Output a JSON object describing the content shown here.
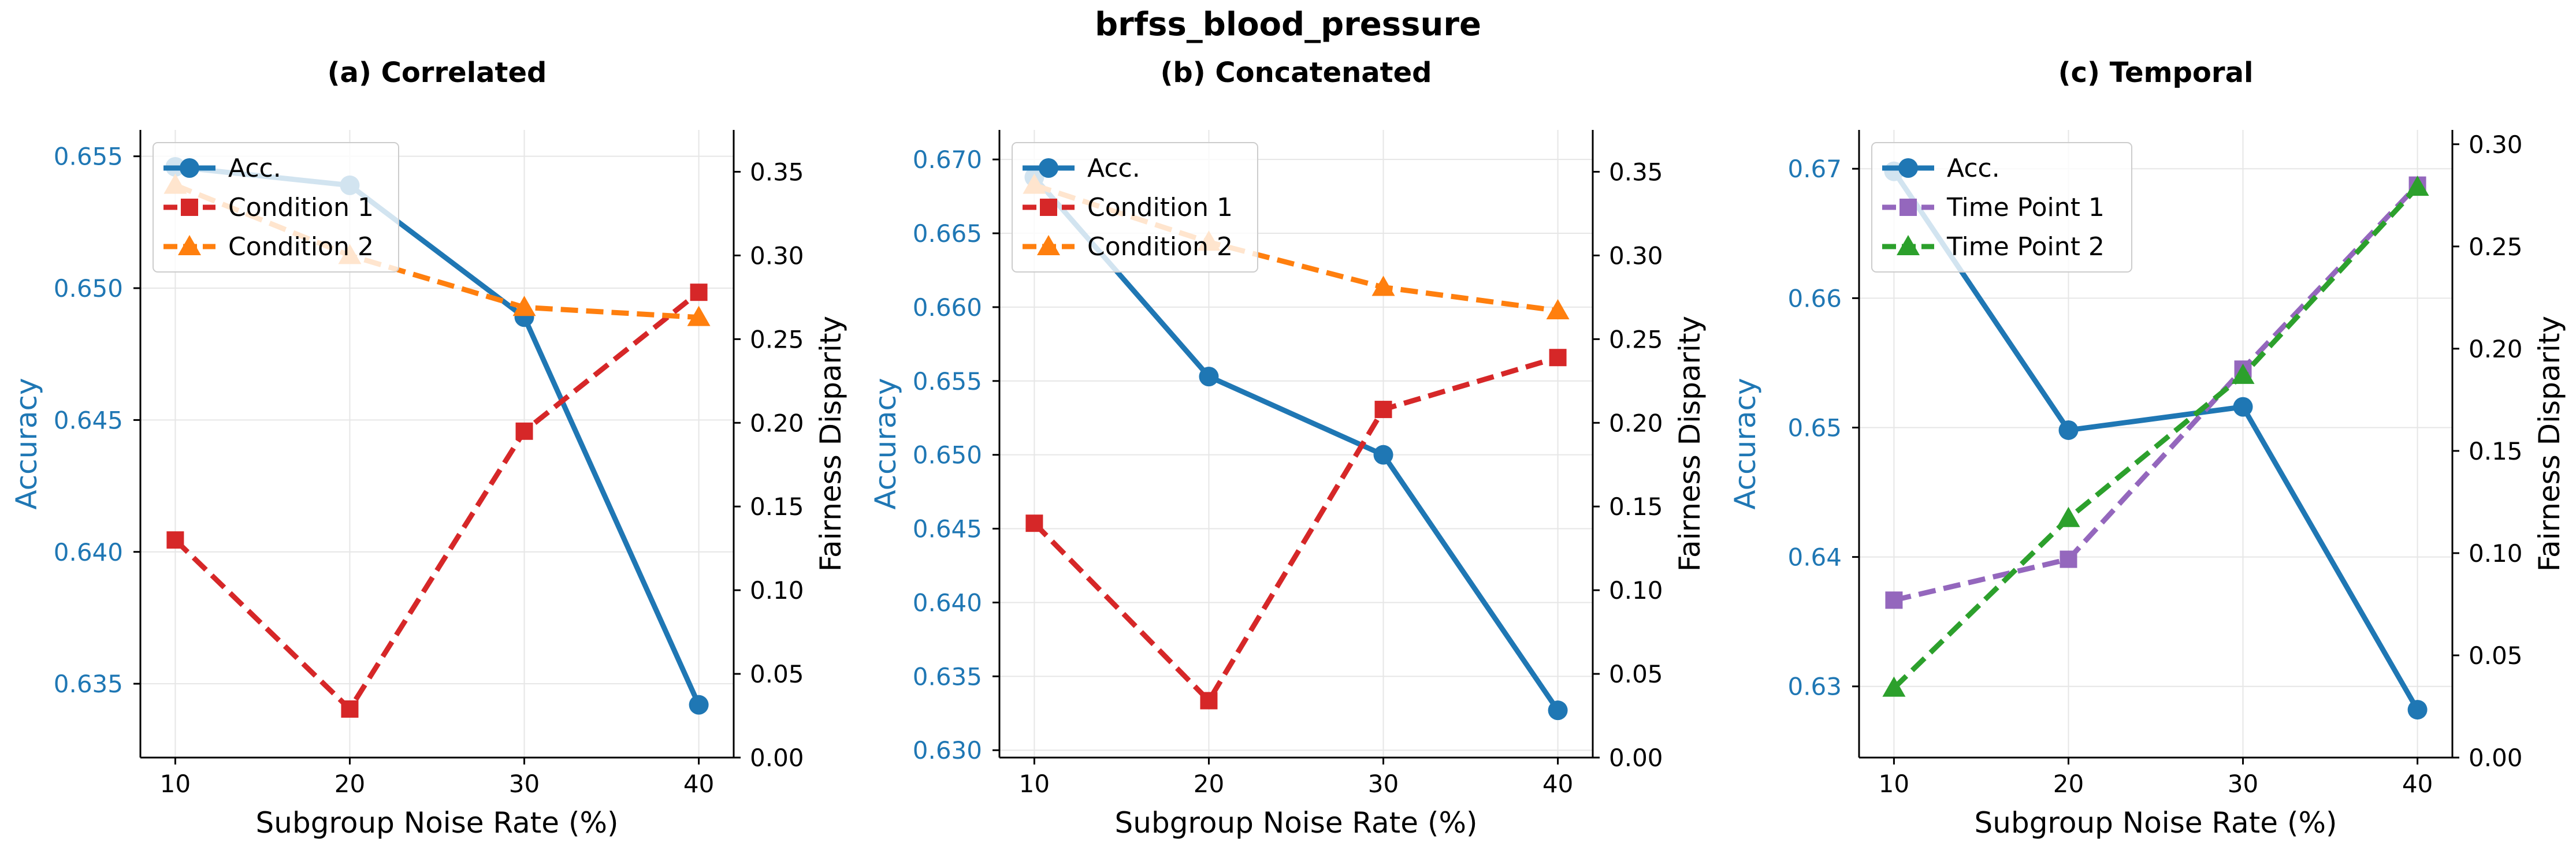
{
  "figure_title": "brfss_blood_pressure",
  "colors": {
    "accuracy": "#1f77b4",
    "condition1": "#d62728",
    "condition2": "#ff7f0e",
    "timepoint1": "#9467bd",
    "timepoint2": "#2ca02c",
    "grid": "#e6e6e6",
    "axis": "#000000"
  },
  "chart_data": [
    {
      "type": "line",
      "title": "(a) Correlated",
      "xlabel": "Subgroup Noise Rate (%)",
      "ylabel": "Accuracy",
      "y2label": "Fairness Disparity",
      "x": [
        10,
        20,
        30,
        40
      ],
      "xlim": [
        8,
        42
      ],
      "ylim": [
        0.6322,
        0.656
      ],
      "y2lim": [
        0.0,
        0.375
      ],
      "yticks": [
        "0.635",
        "0.640",
        "0.645",
        "0.650",
        "0.655"
      ],
      "y2ticks": [
        "0.00",
        "0.05",
        "0.10",
        "0.15",
        "0.20",
        "0.25",
        "0.30",
        "0.35"
      ],
      "grid": true,
      "legend_position": "top-left",
      "series": [
        {
          "name": "Acc.",
          "axis": "left",
          "values": [
            0.6546,
            0.6539,
            0.6489,
            0.6342
          ],
          "color": "accuracy",
          "marker": "circle",
          "dashed": false
        },
        {
          "name": "Condition 1",
          "axis": "right",
          "values": [
            0.13,
            0.029,
            0.195,
            0.278
          ],
          "color": "condition1",
          "marker": "square",
          "dashed": true
        },
        {
          "name": "Condition 2",
          "axis": "right",
          "values": [
            0.342,
            0.3,
            0.269,
            0.263
          ],
          "color": "condition2",
          "marker": "triangle",
          "dashed": true
        }
      ]
    },
    {
      "type": "line",
      "title": "(b) Concatenated",
      "xlabel": "Subgroup Noise Rate (%)",
      "ylabel": "Accuracy",
      "y2label": "Fairness Disparity",
      "x": [
        10,
        20,
        30,
        40
      ],
      "xlim": [
        8,
        42
      ],
      "ylim": [
        0.6295,
        0.672
      ],
      "y2lim": [
        0.0,
        0.375
      ],
      "yticks": [
        "0.630",
        "0.635",
        "0.640",
        "0.645",
        "0.650",
        "0.655",
        "0.660",
        "0.665",
        "0.670"
      ],
      "y2ticks": [
        "0.00",
        "0.05",
        "0.10",
        "0.15",
        "0.20",
        "0.25",
        "0.30",
        "0.35"
      ],
      "grid": true,
      "legend_position": "top-left",
      "series": [
        {
          "name": "Acc.",
          "axis": "left",
          "values": [
            0.6688,
            0.6553,
            0.65,
            0.6327
          ],
          "color": "accuracy",
          "marker": "circle",
          "dashed": false
        },
        {
          "name": "Condition 1",
          "axis": "right",
          "values": [
            0.14,
            0.034,
            0.208,
            0.239
          ],
          "color": "condition1",
          "marker": "square",
          "dashed": true
        },
        {
          "name": "Condition 2",
          "axis": "right",
          "values": [
            0.342,
            0.308,
            0.281,
            0.267
          ],
          "color": "condition2",
          "marker": "triangle",
          "dashed": true
        }
      ]
    },
    {
      "type": "line",
      "title": "(c) Temporal",
      "xlabel": "Subgroup Noise Rate (%)",
      "ylabel": "Accuracy",
      "y2label": "Fairness Disparity",
      "x": [
        10,
        20,
        30,
        40
      ],
      "xlim": [
        8,
        42
      ],
      "ylim": [
        0.6245,
        0.673
      ],
      "y2lim": [
        0.0,
        0.307
      ],
      "yticks": [
        "0.63",
        "0.64",
        "0.65",
        "0.66",
        "0.67"
      ],
      "y2ticks": [
        "0.00",
        "0.05",
        "0.10",
        "0.15",
        "0.20",
        "0.25",
        "0.30"
      ],
      "grid": true,
      "legend_position": "top-left",
      "series": [
        {
          "name": "Acc.",
          "axis": "left",
          "values": [
            0.6698,
            0.6498,
            0.6516,
            0.6282
          ],
          "color": "accuracy",
          "marker": "circle",
          "dashed": false
        },
        {
          "name": "Time Point 1",
          "axis": "right",
          "values": [
            0.077,
            0.097,
            0.19,
            0.28
          ],
          "color": "timepoint1",
          "marker": "square",
          "dashed": true
        },
        {
          "name": "Time Point 2",
          "axis": "right",
          "values": [
            0.034,
            0.117,
            0.187,
            0.279
          ],
          "color": "timepoint2",
          "marker": "triangle",
          "dashed": true
        }
      ]
    }
  ]
}
